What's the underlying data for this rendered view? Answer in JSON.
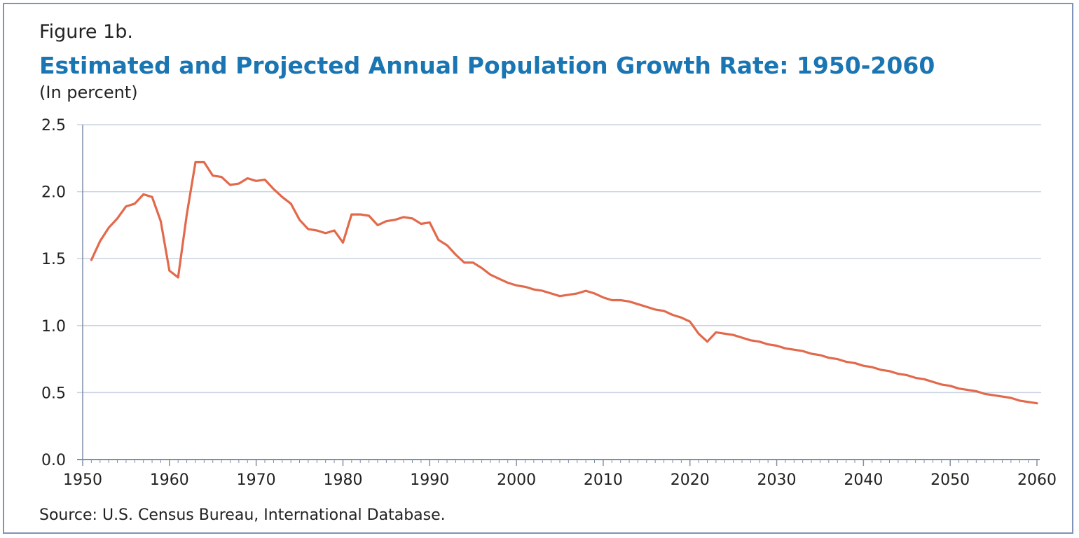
{
  "figure_label": "Figure 1b.",
  "source": "Source: U.S. Census Bureau, International Database.",
  "colors": {
    "line": "#e2694b",
    "title": "#1a76b3",
    "grid": "#c9d3e3",
    "axis": "#7f8fa8",
    "frame": "#7f93b8"
  },
  "chart_data": {
    "type": "line",
    "title": "Estimated and Projected Annual Population Growth Rate: 1950-2060",
    "subtitle": "(In percent)",
    "xlabel": "",
    "ylabel": "",
    "xlim": [
      1950,
      2060
    ],
    "ylim": [
      0,
      2.5
    ],
    "grid": true,
    "x_ticks": [
      1950,
      1960,
      1970,
      1980,
      1990,
      2000,
      2010,
      2020,
      2030,
      2040,
      2050,
      2060
    ],
    "y_ticks": [
      0.0,
      0.5,
      1.0,
      1.5,
      2.0,
      2.5
    ],
    "y_tick_labels": [
      "0.0",
      "0.5",
      "1.0",
      "1.5",
      "2.0",
      "2.5"
    ],
    "series": [
      {
        "x": [
          1951,
          1952,
          1953,
          1954,
          1955,
          1956,
          1957,
          1958,
          1959,
          1960,
          1961,
          1962,
          1963,
          1964,
          1965,
          1966,
          1967,
          1968,
          1969,
          1970,
          1971,
          1972,
          1973,
          1974,
          1975,
          1976,
          1977,
          1978,
          1979,
          1980,
          1981,
          1982,
          1983,
          1984,
          1985,
          1986,
          1987,
          1988,
          1989,
          1990,
          1991,
          1992,
          1993,
          1994,
          1995,
          1996,
          1997,
          1998,
          1999,
          2000,
          2001,
          2002,
          2003,
          2004,
          2005,
          2006,
          2007,
          2008,
          2009,
          2010,
          2011,
          2012,
          2013,
          2014,
          2015,
          2016,
          2017,
          2018,
          2019,
          2020,
          2021,
          2022,
          2023,
          2024,
          2025,
          2026,
          2027,
          2028,
          2029,
          2030,
          2031,
          2032,
          2033,
          2034,
          2035,
          2036,
          2037,
          2038,
          2039,
          2040,
          2041,
          2042,
          2043,
          2044,
          2045,
          2046,
          2047,
          2048,
          2049,
          2050,
          2051,
          2052,
          2053,
          2054,
          2055,
          2056,
          2057,
          2058,
          2059,
          2060
        ],
        "values": [
          1.49,
          1.63,
          1.73,
          1.8,
          1.89,
          1.91,
          1.98,
          1.96,
          1.78,
          1.41,
          1.36,
          1.83,
          2.22,
          2.22,
          2.12,
          2.11,
          2.05,
          2.06,
          2.1,
          2.08,
          2.09,
          2.02,
          1.96,
          1.91,
          1.79,
          1.72,
          1.71,
          1.69,
          1.71,
          1.62,
          1.83,
          1.83,
          1.82,
          1.75,
          1.78,
          1.79,
          1.81,
          1.8,
          1.76,
          1.77,
          1.64,
          1.6,
          1.53,
          1.47,
          1.47,
          1.43,
          1.38,
          1.35,
          1.32,
          1.3,
          1.29,
          1.27,
          1.26,
          1.24,
          1.22,
          1.23,
          1.24,
          1.26,
          1.24,
          1.21,
          1.19,
          1.19,
          1.18,
          1.16,
          1.14,
          1.12,
          1.11,
          1.08,
          1.06,
          1.03,
          0.94,
          0.88,
          0.95,
          0.94,
          0.93,
          0.91,
          0.89,
          0.88,
          0.86,
          0.85,
          0.83,
          0.82,
          0.81,
          0.79,
          0.78,
          0.76,
          0.75,
          0.73,
          0.72,
          0.7,
          0.69,
          0.67,
          0.66,
          0.64,
          0.63,
          0.61,
          0.6,
          0.58,
          0.56,
          0.55,
          0.53,
          0.52,
          0.51,
          0.49,
          0.48,
          0.47,
          0.46,
          0.44,
          0.43,
          0.42
        ]
      }
    ]
  }
}
